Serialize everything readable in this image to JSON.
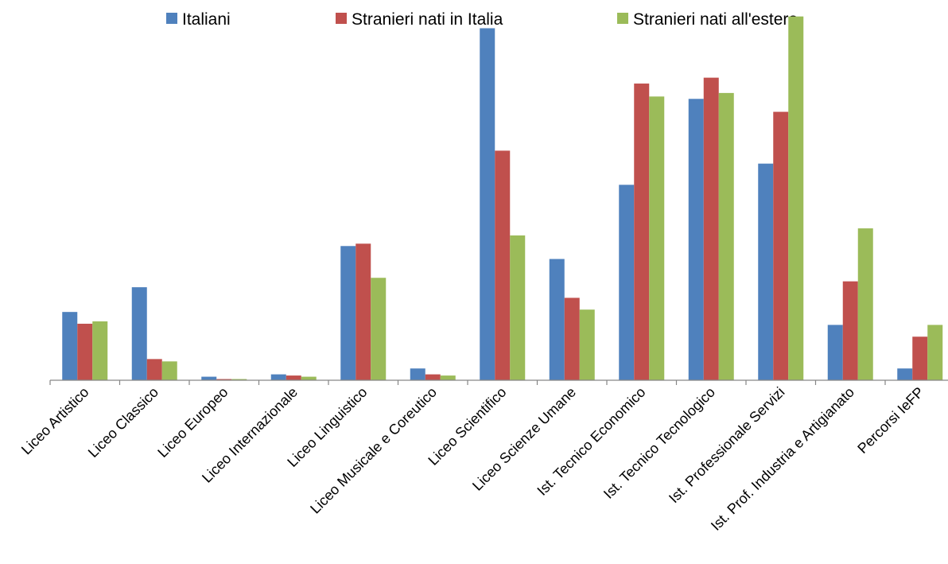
{
  "chart_data": {
    "type": "bar",
    "title": "",
    "xlabel": "",
    "ylabel": "",
    "ylim": [
      0,
      30
    ],
    "grid": false,
    "legend_position": "top",
    "categories": [
      "Liceo Artistico",
      "Liceo Classico",
      "Liceo Europeo",
      "Liceo Internazionale",
      "Liceo Linguistico",
      "Liceo Musicale e Coreutico",
      "Liceo Scientifico",
      "Liceo Scienze Umane",
      "Ist. Tecnico Economico",
      "Ist. Tecnico Tecnologico",
      "Ist. Professionale Servizi",
      "Ist. Prof. Industria e Artigianato",
      "Percorsi IeFP"
    ],
    "series": [
      {
        "name": "Italiani",
        "color": "#4F81BD",
        "values": [
          5.8,
          7.9,
          0.3,
          0.5,
          11.4,
          1.0,
          29.9,
          10.3,
          16.6,
          23.9,
          18.4,
          4.7,
          1.0
        ]
      },
      {
        "name": "Stranieri nati in Italia",
        "color": "#C0504D",
        "values": [
          4.8,
          1.8,
          0.1,
          0.4,
          11.6,
          0.5,
          19.5,
          7.0,
          25.2,
          25.7,
          22.8,
          8.4,
          3.7
        ]
      },
      {
        "name": "Stranieri nati all'estero",
        "color": "#9BBB59",
        "values": [
          5.0,
          1.6,
          0.1,
          0.3,
          8.7,
          0.4,
          12.3,
          6.0,
          24.1,
          24.4,
          30.9,
          12.9,
          4.7
        ]
      }
    ]
  }
}
